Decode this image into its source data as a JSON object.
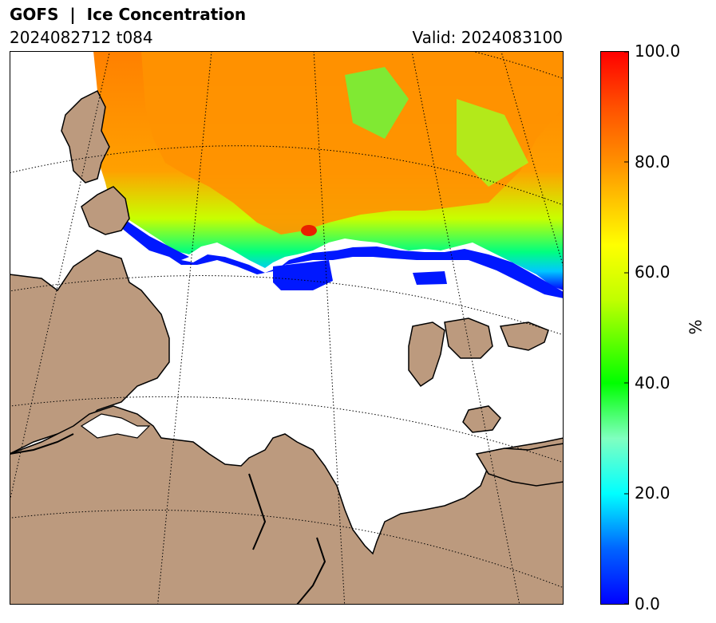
{
  "header": {
    "title": "GOFS  |  Ice Concentration",
    "run": "2024082712 t084",
    "valid": "Valid: 2024083100"
  },
  "colorbar": {
    "unit": "%",
    "ticks": [
      "100.0",
      "80.0",
      "60.0",
      "40.0",
      "20.0",
      "0.0"
    ],
    "range": [
      0,
      100
    ],
    "colors": [
      "#0000ff",
      "#00ffff",
      "#00ff00",
      "#ffff00",
      "#ff8c00",
      "#ff0000"
    ]
  },
  "map": {
    "land_color": "#bc9a7e",
    "ocean_color": "#ffffff",
    "graticule": "dotted"
  }
}
